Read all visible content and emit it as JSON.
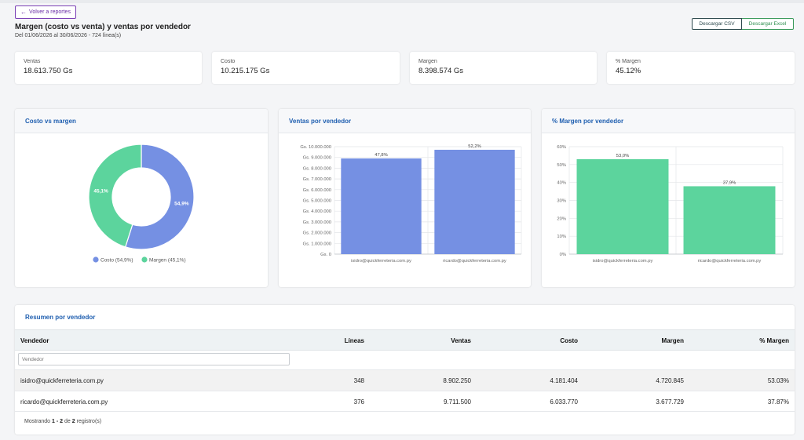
{
  "nav": {
    "back_label": "Volver a reportes"
  },
  "header": {
    "title": "Margen (costo vs venta) y ventas por vendedor",
    "subtitle": "Del 01/06/2026 al 30/06/2026 - 724 línea(s)"
  },
  "export": {
    "csv_label": "Descargar CSV",
    "excel_label": "Descargar Excel"
  },
  "kpis": [
    {
      "label": "Ventas",
      "value": "18.613.750 Gs"
    },
    {
      "label": "Costo",
      "value": "10.215.175 Gs"
    },
    {
      "label": "Margen",
      "value": "8.398.574 Gs"
    },
    {
      "label": "% Margen",
      "value": "45.12%"
    }
  ],
  "colors": {
    "costo": "#7590e3",
    "margen": "#5cd49d",
    "title_blue": "#1f5fb0"
  },
  "charts": {
    "donut_title": "Costo vs margen",
    "ventas_title": "Ventas por vendedor",
    "margen_title": "% Margen por vendedor"
  },
  "chart_data": [
    {
      "type": "pie",
      "title": "Costo vs margen",
      "categories": [
        "Costo",
        "Margen"
      ],
      "values": [
        54.9,
        45.1
      ],
      "data_labels": [
        "54,9%",
        "45,1%"
      ],
      "legend": [
        "Costo (54,9%)",
        "Margen (45,1%)"
      ],
      "legend_position": "bottom",
      "donut": true
    },
    {
      "type": "bar",
      "title": "Ventas por vendedor",
      "categories": [
        "isidro@quickferreteria.com.py",
        "ricardo@quickferreteria.com.py"
      ],
      "values": [
        8902250,
        9711500
      ],
      "data_labels": [
        "47,8%",
        "52,2%"
      ],
      "ylim": [
        0,
        10000000
      ],
      "yticks": [
        "Gs. 0",
        "Gs. 1.000.000",
        "Gs. 2.000.000",
        "Gs. 3.000.000",
        "Gs. 4.000.000",
        "Gs. 5.000.000",
        "Gs. 6.000.000",
        "Gs. 7.000.000",
        "Gs. 8.000.000",
        "Gs. 9.000.000",
        "Gs. 10.000.000"
      ],
      "grid": true
    },
    {
      "type": "bar",
      "title": "% Margen por vendedor",
      "categories": [
        "isidro@quickferreteria.com.py",
        "ricardo@quickferreteria.com.py"
      ],
      "values": [
        53.0,
        37.9
      ],
      "data_labels": [
        "53,0%",
        "37,9%"
      ],
      "ylim": [
        0,
        60
      ],
      "yticks": [
        "0%",
        "10%",
        "20%",
        "30%",
        "40%",
        "50%",
        "60%"
      ],
      "grid": true
    }
  ],
  "table": {
    "title": "Resumen por vendedor",
    "columns": [
      "Vendedor",
      "Líneas",
      "Ventas",
      "Costo",
      "Margen",
      "% Margen"
    ],
    "filter_placeholder": "Vendedor",
    "rows": [
      [
        "isidro@quickferreteria.com.py",
        "348",
        "8.902.250",
        "4.181.404",
        "4.720.845",
        "53.03%"
      ],
      [
        "ricardo@quickferreteria.com.py",
        "376",
        "9.711.500",
        "6.033.770",
        "3.677.729",
        "37.87%"
      ]
    ],
    "footer": {
      "prefix": "Mostrando",
      "range": "1 - 2",
      "of": "de",
      "total": "2",
      "suffix": "registro(s)"
    }
  }
}
